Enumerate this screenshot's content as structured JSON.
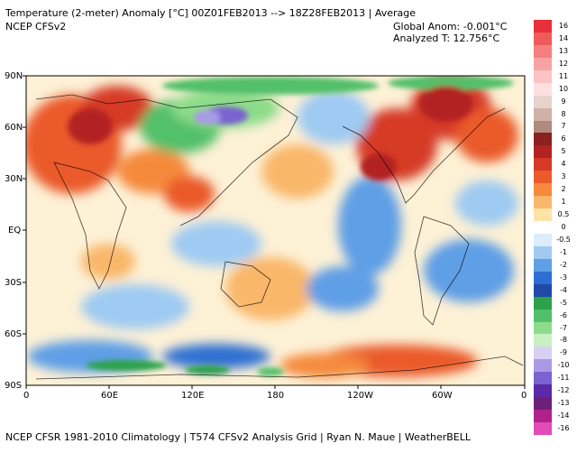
{
  "header": {
    "title": "Temperature (2-meter) Anomaly  [°C] 00Z01FEB2013 --> 18Z28FEB2013 | Average",
    "model": "NCEP  CFSv2",
    "global_anom": "Global Anom: -0.001°C",
    "analyzed_t": "Analyzed T: 12.756°C"
  },
  "footer": {
    "credits": "NCEP CFSR 1981-2010 Climatology | T574 CFSv2 Analysis Grid | Ryan N. Maue | WeatherBELL"
  },
  "axes": {
    "lat_labels": [
      "90N",
      "60N",
      "30N",
      "EQ",
      "30S",
      "60S",
      "90S"
    ],
    "lon_labels": [
      "0",
      "60E",
      "120E",
      "180",
      "120W",
      "60W",
      "0"
    ]
  },
  "colorbar": {
    "labels": [
      "16",
      "14",
      "13",
      "12",
      "11",
      "10",
      "9",
      "8",
      "7",
      "6",
      "5",
      "4",
      "3",
      "2",
      "1",
      "0.5",
      "0",
      "-0.5",
      "-1",
      "-2",
      "-3",
      "-4",
      "-5",
      "-6",
      "-7",
      "-8",
      "-9",
      "-10",
      "-11",
      "-12",
      "-13",
      "-14",
      "-16"
    ],
    "colors": [
      "#e8303a",
      "#ef5a5a",
      "#f47f7f",
      "#f8a3a3",
      "#fbc3c3",
      "#fde0e0",
      "#e8d2cc",
      "#cfb1a7",
      "#b08a7e",
      "#8a2020",
      "#b32222",
      "#d63a26",
      "#ea5a2a",
      "#f58a3c",
      "#f9b76b",
      "#fde3a5",
      "#ffffff",
      "#dcecfb",
      "#9fcaf2",
      "#5f9fe6",
      "#2d6fd2",
      "#1f4aa8",
      "#2ca24a",
      "#52c06a",
      "#8cdc8a",
      "#c8f0c0",
      "#d8d0f4",
      "#a99ae6",
      "#7a62d0",
      "#5a2aa8",
      "#6e1f7a",
      "#b0228a",
      "#e24ab8"
    ]
  }
}
